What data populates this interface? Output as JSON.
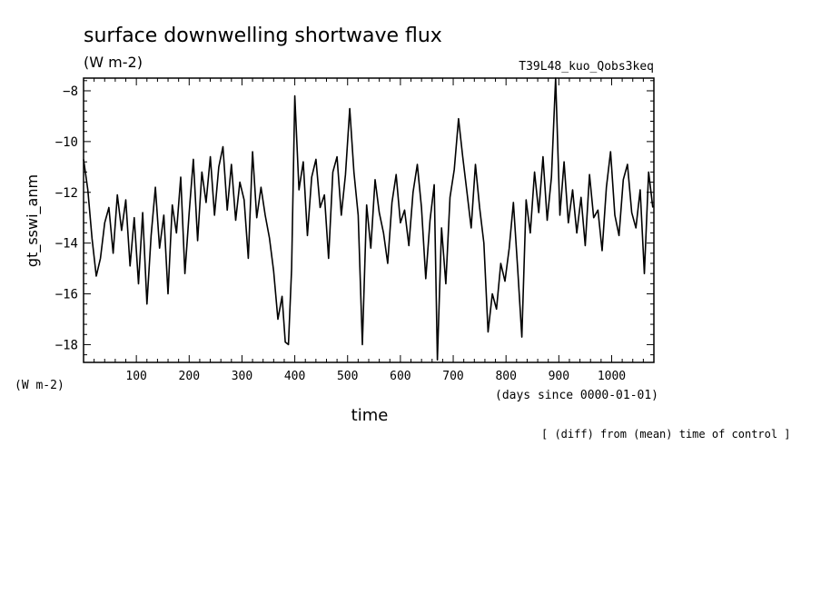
{
  "chart_data": {
    "type": "line",
    "title": "surface downwelling shortwave flux",
    "units": "(W m-2)",
    "experiment": "T39L48_kuo_Qobs3keq",
    "ylabel": "gt_sswi_anm",
    "y_units_label": "(W m-2)",
    "xlabel": "time",
    "x_units_label": "(days since 0000-01-01)",
    "footnote": "[ (diff) from (mean) time of control ]",
    "xlim": [
      0,
      1080
    ],
    "ylim": [
      -18.7,
      -7.5
    ],
    "x_ticks": [
      100,
      200,
      300,
      400,
      500,
      600,
      700,
      800,
      900,
      1000
    ],
    "y_ticks": [
      -8,
      -10,
      -12,
      -14,
      -16,
      -18
    ],
    "x_tick_labels": [
      "100",
      "200",
      "300",
      "400",
      "500",
      "600",
      "700",
      "800",
      "900",
      "1000"
    ],
    "y_tick_labels": [
      "−8",
      "−10",
      "−12",
      "−14",
      "−16",
      "−18"
    ],
    "grid": false,
    "series": [
      {
        "x": [
          0,
          8,
          16,
          24,
          32,
          40,
          48,
          56,
          64,
          72,
          80,
          88,
          96,
          104,
          112,
          120,
          128,
          136,
          144,
          152,
          160,
          168,
          176,
          184,
          192,
          200,
          208,
          216,
          224,
          232,
          240,
          248,
          256,
          264,
          272,
          280,
          288,
          296,
          304,
          312,
          320,
          328,
          336,
          344,
          352,
          360,
          368,
          376,
          382,
          388,
          394,
          400,
          408,
          416,
          424,
          432,
          440,
          448,
          456,
          464,
          472,
          480,
          488,
          496,
          504,
          512,
          520,
          528,
          536,
          544,
          552,
          560,
          568,
          576,
          584,
          592,
          600,
          608,
          616,
          624,
          632,
          640,
          648,
          656,
          664,
          670,
          678,
          686,
          694,
          702,
          710,
          718,
          726,
          734,
          742,
          750,
          758,
          766,
          774,
          782,
          790,
          798,
          806,
          814,
          822,
          830,
          838,
          846,
          854,
          862,
          870,
          878,
          886,
          894,
          902,
          910,
          918,
          926,
          934,
          942,
          950,
          958,
          966,
          974,
          982,
          990,
          998,
          1006,
          1014,
          1022,
          1030,
          1038,
          1046,
          1054,
          1062,
          1070,
          1078
        ],
        "y": [
          -10.7,
          -11.9,
          -13.8,
          -15.3,
          -14.6,
          -13.2,
          -12.6,
          -14.4,
          -12.1,
          -13.5,
          -12.3,
          -14.9,
          -13.0,
          -15.6,
          -12.8,
          -16.4,
          -13.7,
          -11.8,
          -14.2,
          -12.9,
          -16.0,
          -12.5,
          -13.6,
          -11.4,
          -15.2,
          -12.8,
          -10.7,
          -13.9,
          -11.2,
          -12.4,
          -10.6,
          -12.9,
          -11.0,
          -10.2,
          -12.7,
          -10.9,
          -13.1,
          -11.6,
          -12.3,
          -14.6,
          -10.4,
          -13.0,
          -11.8,
          -12.9,
          -13.8,
          -15.1,
          -17.0,
          -16.1,
          -17.9,
          -18.0,
          -15.0,
          -8.2,
          -11.9,
          -10.8,
          -13.7,
          -11.4,
          -10.7,
          -12.6,
          -12.1,
          -14.6,
          -11.2,
          -10.6,
          -12.9,
          -11.3,
          -8.7,
          -11.2,
          -12.9,
          -18.0,
          -12.5,
          -14.2,
          -11.5,
          -12.8,
          -13.6,
          -14.8,
          -12.4,
          -11.3,
          -13.2,
          -12.7,
          -14.1,
          -12.0,
          -10.9,
          -12.6,
          -15.4,
          -13.1,
          -11.7,
          -18.6,
          -13.4,
          -15.6,
          -12.2,
          -11.1,
          -9.1,
          -10.6,
          -12.0,
          -13.4,
          -10.9,
          -12.6,
          -14.0,
          -17.5,
          -16.0,
          -16.6,
          -14.8,
          -15.5,
          -14.2,
          -12.4,
          -15.0,
          -17.7,
          -12.3,
          -13.6,
          -11.2,
          -12.8,
          -10.6,
          -13.1,
          -11.4,
          -7.5,
          -12.9,
          -10.8,
          -13.2,
          -11.9,
          -13.6,
          -12.2,
          -14.1,
          -11.3,
          -13.0,
          -12.7,
          -14.3,
          -11.8,
          -10.4,
          -12.9,
          -13.7,
          -11.5,
          -10.9,
          -12.8,
          -13.4,
          -11.9,
          -15.2,
          -11.2,
          -12.6
        ]
      }
    ]
  }
}
